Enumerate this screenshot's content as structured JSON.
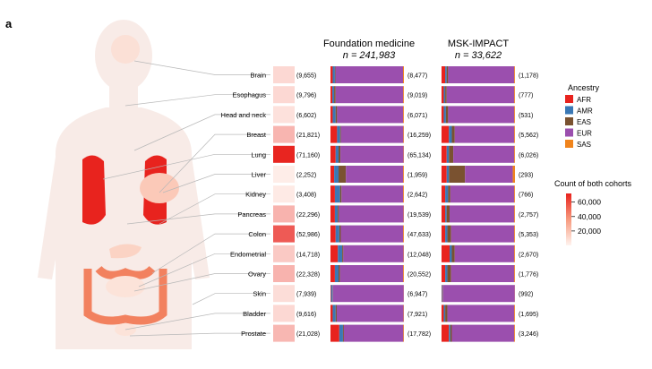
{
  "chart_data": {
    "type": "stacked-bar",
    "panel_label": "a",
    "cohorts": [
      {
        "name": "Foundation medicine",
        "n_label": "n = 241,983"
      },
      {
        "name": "MSK-IMPACT",
        "n_label": "n = 33,622"
      }
    ],
    "legend_title": "Ancestry",
    "ancestries": [
      "AFR",
      "AMR",
      "EAS",
      "EUR",
      "SAS"
    ],
    "ancestry_colors": [
      "#e8231e",
      "#3a78b5",
      "#7a5230",
      "#9b4fae",
      "#f0841c"
    ],
    "colorbar": {
      "title": "Count of both cohorts",
      "ticks": [
        "60,000",
        "40,000",
        "20,000"
      ],
      "tick_values": [
        60000,
        40000,
        20000
      ],
      "min": 0,
      "max": 72000
    },
    "cancers": [
      {
        "name": "Brain",
        "total": 9655,
        "total_label": "(9,655)",
        "fm_n": "(8,477)",
        "msk_n": "(1,178)",
        "fm": [
          0.03,
          0.03,
          0.008,
          0.92,
          0.012
        ],
        "msk": [
          0.05,
          0.02,
          0.02,
          0.9,
          0.01
        ]
      },
      {
        "name": "Esophagus",
        "total": 9796,
        "total_label": "(9,796)",
        "fm_n": "(9,019)",
        "msk_n": "(777)",
        "fm": [
          0.025,
          0.025,
          0.02,
          0.92,
          0.01
        ],
        "msk": [
          0.03,
          0.02,
          0.02,
          0.92,
          0.01
        ]
      },
      {
        "name": "Head and neck",
        "total": 6602,
        "total_label": "(6,602)",
        "fm_n": "(6,071)",
        "msk_n": "(531)",
        "fm": [
          0.03,
          0.04,
          0.02,
          0.9,
          0.01
        ],
        "msk": [
          0.03,
          0.03,
          0.03,
          0.9,
          0.01
        ]
      },
      {
        "name": "Breast",
        "total": 21821,
        "total_label": "(21,821)",
        "fm_n": "(16,259)",
        "msk_n": "(5,562)",
        "fm": [
          0.09,
          0.04,
          0.012,
          0.85,
          0.008
        ],
        "msk": [
          0.1,
          0.04,
          0.04,
          0.81,
          0.01
        ]
      },
      {
        "name": "Lung",
        "total": 71160,
        "total_label": "(71,160)",
        "fm_n": "(65,134)",
        "msk_n": "(6,026)",
        "fm": [
          0.07,
          0.04,
          0.025,
          0.86,
          0.005
        ],
        "msk": [
          0.07,
          0.03,
          0.06,
          0.83,
          0.01
        ]
      },
      {
        "name": "Liver",
        "total": 2252,
        "total_label": "(2,252)",
        "fm_n": "(1,959)",
        "msk_n": "(293)",
        "fm": [
          0.05,
          0.06,
          0.1,
          0.78,
          0.01
        ],
        "msk": [
          0.07,
          0.03,
          0.22,
          0.65,
          0.03
        ]
      },
      {
        "name": "Kidney",
        "total": 3408,
        "total_label": "(3,408)",
        "fm_n": "(2,642)",
        "msk_n": "(766)",
        "fm": [
          0.06,
          0.07,
          0.02,
          0.84,
          0.01
        ],
        "msk": [
          0.05,
          0.04,
          0.03,
          0.87,
          0.01
        ]
      },
      {
        "name": "Pancreas",
        "total": 22296,
        "total_label": "(22,296)",
        "fm_n": "(19,539)",
        "msk_n": "(2,757)",
        "fm": [
          0.06,
          0.04,
          0.015,
          0.88,
          0.005
        ],
        "msk": [
          0.05,
          0.02,
          0.04,
          0.88,
          0.01
        ]
      },
      {
        "name": "Colon",
        "total": 52986,
        "total_label": "(52,986)",
        "fm_n": "(47,633)",
        "msk_n": "(5,353)",
        "fm": [
          0.07,
          0.05,
          0.02,
          0.85,
          0.01
        ],
        "msk": [
          0.05,
          0.03,
          0.05,
          0.86,
          0.01
        ]
      },
      {
        "name": "Endometrial",
        "total": 14718,
        "total_label": "(14,718)",
        "fm_n": "(12,048)",
        "msk_n": "(2,670)",
        "fm": [
          0.1,
          0.06,
          0.015,
          0.82,
          0.005
        ],
        "msk": [
          0.11,
          0.03,
          0.04,
          0.81,
          0.01
        ]
      },
      {
        "name": "Ovary",
        "total": 22328,
        "total_label": "(22,328)",
        "fm_n": "(20,552)",
        "msk_n": "(1,776)",
        "fm": [
          0.06,
          0.05,
          0.02,
          0.86,
          0.01
        ],
        "msk": [
          0.05,
          0.03,
          0.05,
          0.86,
          0.01
        ]
      },
      {
        "name": "Skin",
        "total": 7939,
        "total_label": "(7,939)",
        "fm_n": "(6,947)",
        "msk_n": "(992)",
        "fm": [
          0.008,
          0.02,
          0.005,
          0.965,
          0.002
        ],
        "msk": [
          0.005,
          0.01,
          0.005,
          0.978,
          0.002
        ]
      },
      {
        "name": "Bladder",
        "total": 9616,
        "total_label": "(9,616)",
        "fm_n": "(7,921)",
        "msk_n": "(1,695)",
        "fm": [
          0.03,
          0.04,
          0.015,
          0.91,
          0.005
        ],
        "msk": [
          0.03,
          0.02,
          0.03,
          0.91,
          0.01
        ]
      },
      {
        "name": "Prostate",
        "total": 21028,
        "total_label": "(21,028)",
        "fm_n": "(17,782)",
        "msk_n": "(3,246)",
        "fm": [
          0.12,
          0.05,
          0.012,
          0.81,
          0.008
        ],
        "msk": [
          0.1,
          0.02,
          0.02,
          0.85,
          0.01
        ]
      }
    ]
  }
}
